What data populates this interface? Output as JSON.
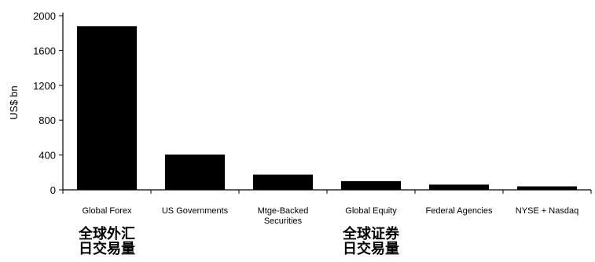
{
  "chart_data": {
    "type": "bar",
    "title": "",
    "xlabel": "",
    "ylabel": "US$ bn",
    "ylim": [
      0,
      2000
    ],
    "yticks": [
      0,
      400,
      800,
      1200,
      1600,
      2000
    ],
    "grid": false,
    "categories": [
      [
        "Global Forex"
      ],
      [
        "US Governments"
      ],
      [
        "Mtge-Backed",
        "Securities"
      ],
      [
        "Global Equity"
      ],
      [
        "Federal Agencies"
      ],
      [
        "NYSE + Nasdaq"
      ]
    ],
    "values": [
      1880,
      405,
      175,
      100,
      60,
      40
    ],
    "bar_color": "#000000",
    "annotations": [
      {
        "lines": [
          "全球外汇",
          "日交易量"
        ],
        "anchor_category_index": 0
      },
      {
        "lines": [
          "全球证券",
          "日交易量"
        ],
        "anchor_category_index": 3
      }
    ]
  }
}
